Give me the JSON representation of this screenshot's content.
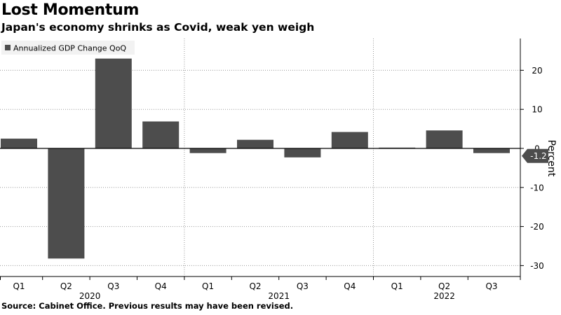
{
  "title": "Lost Momentum",
  "subtitle": "Japan's economy shrinks as Covid, weak yen weigh",
  "source": "Source: Cabinet Office. Previous results may have been revised.",
  "colors": {
    "bar": "#4d4d4d",
    "grid": "#9a9a9a",
    "callout": "#4d4d4d",
    "legend_bg": "#f2f2f2"
  },
  "chart_data": {
    "type": "bar",
    "title": "",
    "ylabel": "Percent",
    "xlabel": "",
    "legend": {
      "placement": "top-left",
      "entries": [
        "Annualized GDP Change QoQ"
      ]
    },
    "ylim": [
      -32,
      28
    ],
    "yticks": [
      -30,
      -20,
      -10,
      0,
      10,
      20
    ],
    "grid": true,
    "categories": [
      "Q1",
      "Q2",
      "Q3",
      "Q4",
      "Q1",
      "Q2",
      "Q3",
      "Q4",
      "Q1",
      "Q2",
      "Q3"
    ],
    "year_labels": [
      "2020",
      "2021",
      "2022"
    ],
    "series": [
      {
        "name": "Annualized GDP Change QoQ",
        "values": [
          2.5,
          -28.2,
          23.0,
          6.9,
          -1.2,
          2.2,
          -2.3,
          4.2,
          0.2,
          4.6,
          -1.2
        ]
      }
    ],
    "callout": {
      "label": "-1.2",
      "value": -1.2
    }
  }
}
